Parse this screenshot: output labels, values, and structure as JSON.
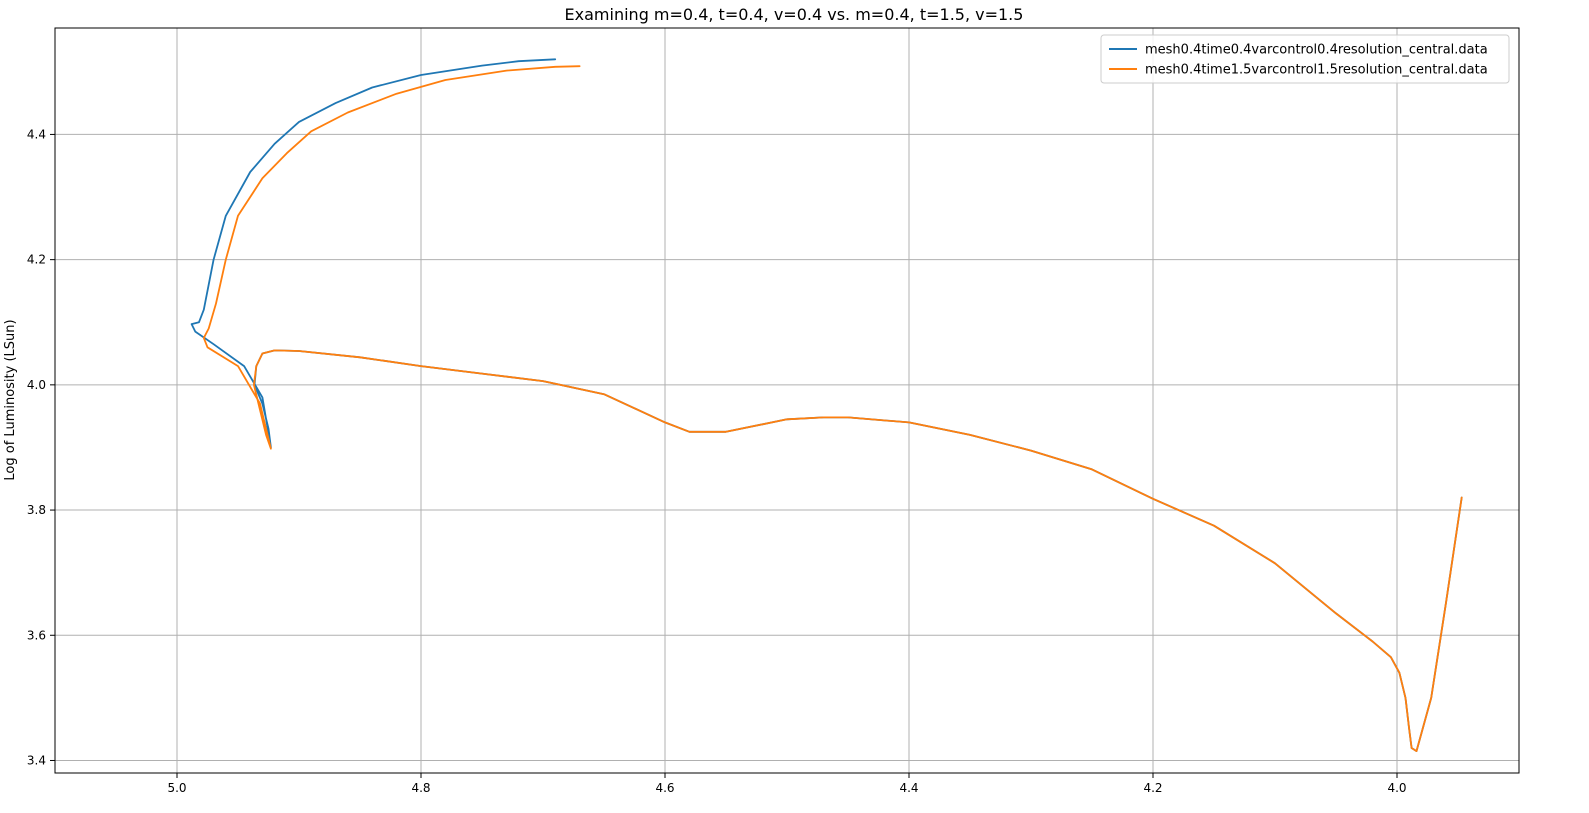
{
  "chart_data": {
    "type": "line",
    "title": "Examining m=0.4, t=0.4, v=0.4 vs. m=0.4, t=1.5, v=1.5",
    "xlabel": "",
    "ylabel": "Log of Luminosity (LSun)",
    "xlim": [
      5.1,
      3.9
    ],
    "ylim": [
      3.38,
      4.57
    ],
    "x_inverted": true,
    "xticks": [
      5.0,
      4.8,
      4.6,
      4.4,
      4.2,
      4.0
    ],
    "xtick_labels": [
      "5.0",
      "4.8",
      "4.6",
      "4.4",
      "4.2",
      "4.0"
    ],
    "yticks": [
      3.4,
      3.6,
      3.8,
      4.0,
      4.2,
      4.4
    ],
    "ytick_labels": [
      "3.4",
      "3.6",
      "3.8",
      "4.0",
      "4.2",
      "4.4"
    ],
    "grid": true,
    "legend_position": "top-right",
    "series": [
      {
        "name": "mesh0.4time0.4varcontrol0.4resolution_central.data",
        "color": "#1f77b4",
        "x": [
          3.947,
          3.96,
          3.972,
          3.984,
          3.988,
          3.99,
          3.993,
          3.998,
          4.005,
          4.02,
          4.05,
          4.1,
          4.15,
          4.2,
          4.25,
          4.3,
          4.35,
          4.4,
          4.45,
          4.47,
          4.5,
          4.55,
          4.58,
          4.6,
          4.65,
          4.7,
          4.75,
          4.8,
          4.85,
          4.9,
          4.92,
          4.93,
          4.935,
          4.9365,
          4.93,
          4.925,
          4.923,
          4.93,
          4.945,
          4.97,
          4.985,
          4.988,
          4.982,
          4.978,
          4.97,
          4.96,
          4.94,
          4.92,
          4.9,
          4.87,
          4.84,
          4.8,
          4.75,
          4.72,
          4.69
        ],
        "y": [
          3.82,
          3.65,
          3.5,
          3.415,
          3.42,
          3.45,
          3.5,
          3.54,
          3.565,
          3.59,
          3.635,
          3.715,
          3.775,
          3.818,
          3.865,
          3.895,
          3.92,
          3.94,
          3.948,
          3.948,
          3.945,
          3.925,
          3.925,
          3.94,
          3.985,
          4.006,
          4.018,
          4.03,
          4.044,
          4.054,
          4.055,
          4.05,
          4.03,
          4.0,
          3.97,
          3.93,
          3.9,
          3.98,
          4.03,
          4.065,
          4.085,
          4.097,
          4.1,
          4.12,
          4.2,
          4.27,
          4.34,
          4.385,
          4.42,
          4.45,
          4.475,
          4.495,
          4.51,
          4.517,
          4.52
        ]
      },
      {
        "name": "mesh0.4time1.5varcontrol1.5resolution_central.data",
        "color": "#ff7f0e",
        "x": [
          3.947,
          3.96,
          3.972,
          3.984,
          3.988,
          3.99,
          3.993,
          3.998,
          4.005,
          4.02,
          4.05,
          4.1,
          4.15,
          4.2,
          4.25,
          4.3,
          4.35,
          4.4,
          4.45,
          4.47,
          4.5,
          4.55,
          4.58,
          4.6,
          4.65,
          4.7,
          4.75,
          4.8,
          4.85,
          4.9,
          4.92,
          4.93,
          4.935,
          4.937,
          4.932,
          4.927,
          4.923,
          4.932,
          4.95,
          4.975,
          4.978,
          4.974,
          4.968,
          4.96,
          4.95,
          4.93,
          4.91,
          4.89,
          4.86,
          4.82,
          4.78,
          4.73,
          4.69,
          4.67
        ],
        "y": [
          3.82,
          3.65,
          3.5,
          3.415,
          3.42,
          3.45,
          3.5,
          3.54,
          3.565,
          3.59,
          3.635,
          3.715,
          3.775,
          3.818,
          3.865,
          3.895,
          3.92,
          3.94,
          3.948,
          3.948,
          3.945,
          3.925,
          3.925,
          3.94,
          3.985,
          4.006,
          4.018,
          4.03,
          4.044,
          4.054,
          4.055,
          4.05,
          4.03,
          4.0,
          3.96,
          3.92,
          3.898,
          3.97,
          4.03,
          4.06,
          4.075,
          4.09,
          4.13,
          4.2,
          4.27,
          4.33,
          4.37,
          4.405,
          4.435,
          4.465,
          4.487,
          4.502,
          4.508,
          4.509
        ]
      }
    ]
  }
}
